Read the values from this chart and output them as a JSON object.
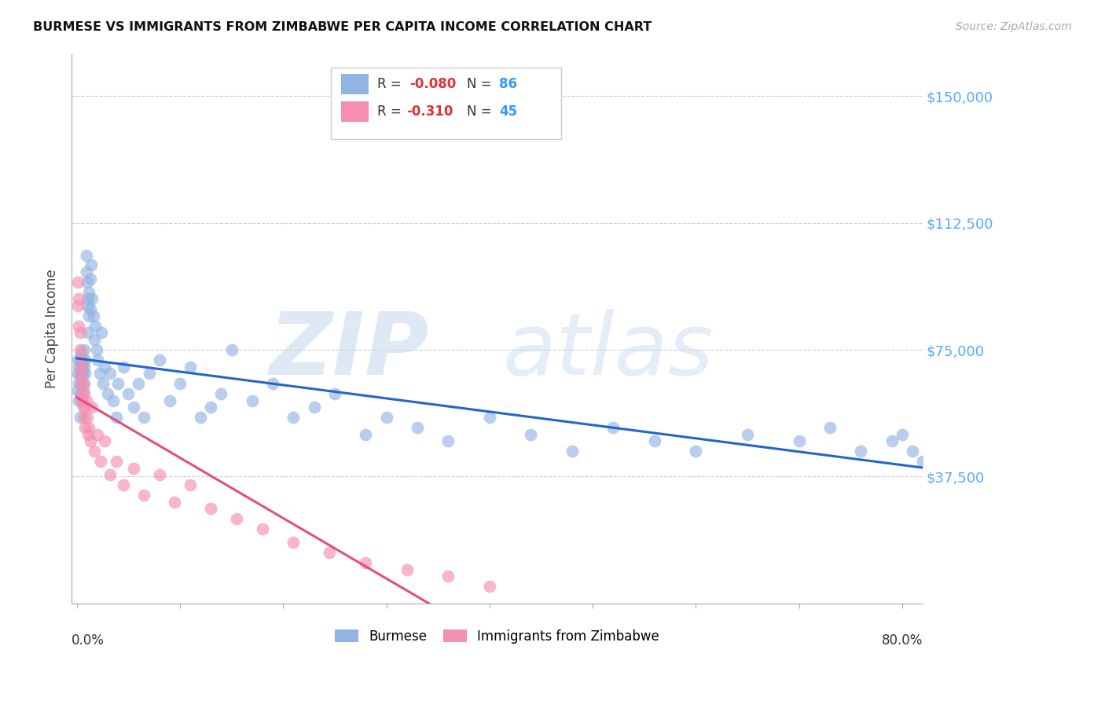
{
  "title": "BURMESE VS IMMIGRANTS FROM ZIMBABWE PER CAPITA INCOME CORRELATION CHART",
  "source": "Source: ZipAtlas.com",
  "ylabel": "Per Capita Income",
  "yticks": [
    0,
    37500,
    75000,
    112500,
    150000
  ],
  "ytick_labels": [
    "",
    "$37,500",
    "$75,000",
    "$112,500",
    "$150,000"
  ],
  "ylim": [
    0,
    162500
  ],
  "xlim": [
    -0.005,
    0.82
  ],
  "burmese_color": "#92b4e3",
  "zimbabwe_color": "#f48fb1",
  "burmese_line_color": "#2266cc",
  "zimbabwe_line_color": "#e0507a",
  "burmese_R": -0.08,
  "burmese_N": 86,
  "zimbabwe_R": -0.31,
  "zimbabwe_N": 45,
  "burmese_x": [
    0.001,
    0.001,
    0.001,
    0.002,
    0.002,
    0.002,
    0.003,
    0.003,
    0.003,
    0.004,
    0.004,
    0.004,
    0.005,
    0.005,
    0.005,
    0.006,
    0.006,
    0.006,
    0.007,
    0.007,
    0.007,
    0.008,
    0.008,
    0.009,
    0.009,
    0.01,
    0.01,
    0.011,
    0.011,
    0.012,
    0.012,
    0.013,
    0.013,
    0.014,
    0.015,
    0.016,
    0.017,
    0.018,
    0.019,
    0.02,
    0.022,
    0.024,
    0.025,
    0.027,
    0.03,
    0.032,
    0.035,
    0.038,
    0.04,
    0.045,
    0.05,
    0.055,
    0.06,
    0.065,
    0.07,
    0.08,
    0.09,
    0.1,
    0.11,
    0.12,
    0.13,
    0.14,
    0.15,
    0.17,
    0.19,
    0.21,
    0.23,
    0.25,
    0.28,
    0.3,
    0.33,
    0.36,
    0.4,
    0.44,
    0.48,
    0.52,
    0.56,
    0.6,
    0.65,
    0.7,
    0.73,
    0.76,
    0.79,
    0.8,
    0.81,
    0.82
  ],
  "burmese_y": [
    68000,
    63000,
    72000,
    60000,
    65000,
    70000,
    55000,
    67000,
    72000,
    62000,
    68000,
    74000,
    65000,
    70000,
    60000,
    68000,
    72000,
    63000,
    65000,
    70000,
    75000,
    68000,
    72000,
    98000,
    103000,
    88000,
    95000,
    80000,
    90000,
    85000,
    92000,
    87000,
    96000,
    100000,
    90000,
    85000,
    78000,
    82000,
    75000,
    72000,
    68000,
    80000,
    65000,
    70000,
    62000,
    68000,
    60000,
    55000,
    65000,
    70000,
    62000,
    58000,
    65000,
    55000,
    68000,
    72000,
    60000,
    65000,
    70000,
    55000,
    58000,
    62000,
    75000,
    60000,
    65000,
    55000,
    58000,
    62000,
    50000,
    55000,
    52000,
    48000,
    55000,
    50000,
    45000,
    52000,
    48000,
    45000,
    50000,
    48000,
    52000,
    45000,
    48000,
    50000,
    45000,
    42000
  ],
  "zimbabwe_x": [
    0.001,
    0.001,
    0.002,
    0.002,
    0.003,
    0.003,
    0.003,
    0.004,
    0.004,
    0.005,
    0.005,
    0.005,
    0.006,
    0.006,
    0.007,
    0.007,
    0.008,
    0.008,
    0.009,
    0.01,
    0.011,
    0.012,
    0.013,
    0.015,
    0.017,
    0.02,
    0.023,
    0.027,
    0.032,
    0.038,
    0.045,
    0.055,
    0.065,
    0.08,
    0.095,
    0.11,
    0.13,
    0.155,
    0.18,
    0.21,
    0.245,
    0.28,
    0.32,
    0.36,
    0.4
  ],
  "zimbabwe_y": [
    95000,
    88000,
    82000,
    90000,
    75000,
    68000,
    80000,
    65000,
    62000,
    70000,
    60000,
    72000,
    65000,
    58000,
    62000,
    55000,
    58000,
    52000,
    60000,
    55000,
    50000,
    52000,
    48000,
    58000,
    45000,
    50000,
    42000,
    48000,
    38000,
    42000,
    35000,
    40000,
    32000,
    38000,
    30000,
    35000,
    28000,
    25000,
    22000,
    18000,
    15000,
    12000,
    10000,
    8000,
    5000
  ]
}
